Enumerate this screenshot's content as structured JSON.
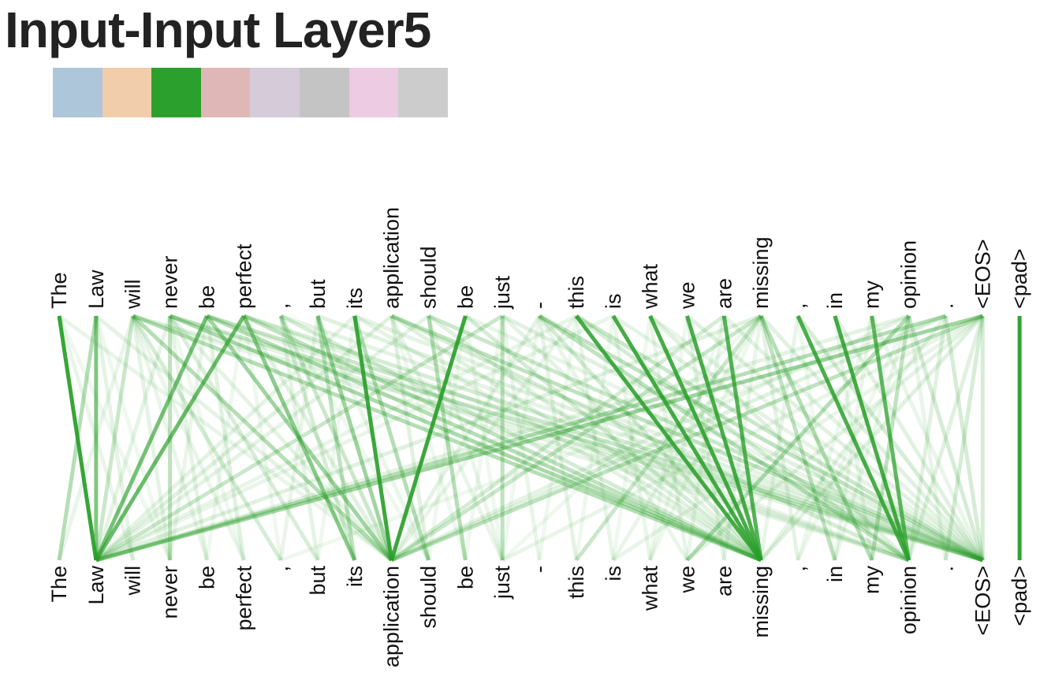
{
  "title": "Input-Input Layer5",
  "head_colors": [
    "#aec6d9",
    "#f2cdac",
    "#2ca02c",
    "#e0b7b7",
    "#d5cbd9",
    "#c4c4c4",
    "#edcbe2",
    "#cccccc"
  ],
  "active_head": 2,
  "link_color": "#2ca02c",
  "tokens": [
    "The",
    "Law",
    "will",
    "never",
    "be",
    "perfect",
    ",",
    "but",
    "its",
    "application",
    "should",
    "be",
    "just",
    "-",
    "this",
    "is",
    "what",
    "we",
    "are",
    "missing",
    ",",
    "in",
    "my",
    "opinion",
    ".",
    "<EOS>",
    "<pad>"
  ],
  "attention": [
    [
      0,
      1,
      0.95
    ],
    [
      1,
      1,
      0.6
    ],
    [
      2,
      1,
      0.25
    ],
    [
      3,
      3,
      0.3
    ],
    [
      4,
      1,
      0.65
    ],
    [
      5,
      1,
      0.7
    ],
    [
      8,
      9,
      0.92
    ],
    [
      11,
      9,
      0.92
    ],
    [
      14,
      19,
      0.88
    ],
    [
      15,
      19,
      0.88
    ],
    [
      16,
      19,
      0.88
    ],
    [
      17,
      19,
      0.85
    ],
    [
      18,
      19,
      0.8
    ],
    [
      20,
      23,
      0.85
    ],
    [
      21,
      23,
      0.88
    ],
    [
      22,
      23,
      0.75
    ],
    [
      26,
      26,
      0.98
    ],
    [
      5,
      8,
      0.55
    ],
    [
      4,
      9,
      0.45
    ],
    [
      7,
      9,
      0.45
    ],
    [
      8,
      10,
      0.35
    ],
    [
      10,
      11,
      0.35
    ],
    [
      12,
      12,
      0.3
    ],
    [
      2,
      9,
      0.35
    ],
    [
      3,
      19,
      0.4
    ],
    [
      2,
      19,
      0.35
    ],
    [
      4,
      19,
      0.35
    ],
    [
      5,
      19,
      0.3
    ],
    [
      1,
      0,
      0.35
    ],
    [
      25,
      1,
      0.45
    ],
    [
      24,
      1,
      0.35
    ],
    [
      25,
      9,
      0.3
    ],
    [
      23,
      17,
      0.35
    ],
    [
      23,
      22,
      0.3
    ],
    [
      19,
      14,
      0.25
    ],
    [
      19,
      22,
      0.35
    ],
    [
      19,
      21,
      0.3
    ],
    [
      25,
      25,
      0.2
    ],
    [
      25,
      24,
      0.2
    ],
    [
      24,
      25,
      0.2
    ],
    [
      4,
      25,
      0.25
    ],
    [
      5,
      25,
      0.2
    ],
    [
      3,
      25,
      0.25
    ],
    [
      9,
      25,
      0.3
    ],
    [
      10,
      25,
      0.25
    ],
    [
      13,
      25,
      0.3
    ],
    [
      14,
      25,
      0.25
    ],
    [
      13,
      23,
      0.3
    ],
    [
      12,
      1,
      0.25
    ],
    [
      9,
      23,
      0.2
    ],
    [
      6,
      9,
      0.25
    ],
    [
      6,
      8,
      0.2
    ],
    [
      7,
      8,
      0.3
    ],
    [
      6,
      19,
      0.2
    ],
    [
      2,
      6,
      0.2
    ],
    [
      3,
      7,
      0.18
    ],
    [
      4,
      5,
      0.15
    ],
    [
      11,
      19,
      0.2
    ],
    [
      10,
      19,
      0.15
    ],
    [
      13,
      19,
      0.2
    ],
    [
      14,
      23,
      0.2
    ],
    [
      18,
      9,
      0.2
    ],
    [
      19,
      9,
      0.25
    ],
    [
      20,
      25,
      0.2
    ],
    [
      21,
      25,
      0.15
    ],
    [
      16,
      23,
      0.15
    ],
    [
      17,
      25,
      0.15
    ],
    [
      12,
      25,
      0.15
    ],
    [
      2,
      3,
      0.12
    ],
    [
      3,
      4,
      0.12
    ],
    [
      2,
      4,
      0.1
    ],
    [
      6,
      7,
      0.12
    ],
    [
      7,
      6,
      0.1
    ],
    [
      9,
      10,
      0.15
    ],
    [
      12,
      13,
      0.1
    ],
    [
      13,
      14,
      0.12
    ],
    [
      15,
      16,
      0.1
    ],
    [
      16,
      17,
      0.1
    ],
    [
      17,
      18,
      0.12
    ],
    [
      18,
      17,
      0.1
    ],
    [
      19,
      20,
      0.12
    ],
    [
      22,
      21,
      0.1
    ],
    [
      24,
      23,
      0.15
    ],
    [
      23,
      24,
      0.1
    ],
    [
      0,
      2,
      0.1
    ],
    [
      1,
      2,
      0.12
    ],
    [
      2,
      0,
      0.1
    ],
    [
      3,
      1,
      0.12
    ],
    [
      9,
      1,
      0.15
    ],
    [
      10,
      1,
      0.12
    ],
    [
      8,
      1,
      0.12
    ],
    [
      14,
      1,
      0.1
    ],
    [
      15,
      1,
      0.1
    ],
    [
      19,
      1,
      0.15
    ],
    [
      23,
      1,
      0.12
    ],
    [
      3,
      23,
      0.12
    ],
    [
      4,
      23,
      0.12
    ],
    [
      2,
      23,
      0.1
    ],
    [
      5,
      23,
      0.1
    ],
    [
      8,
      19,
      0.12
    ],
    [
      9,
      19,
      0.15
    ],
    [
      12,
      19,
      0.12
    ],
    [
      0,
      9,
      0.1
    ],
    [
      1,
      9,
      0.12
    ],
    [
      3,
      9,
      0.12
    ],
    [
      5,
      9,
      0.15
    ],
    [
      13,
      9,
      0.12
    ],
    [
      14,
      9,
      0.1
    ],
    [
      23,
      9,
      0.12
    ],
    [
      24,
      9,
      0.15
    ],
    [
      2,
      25,
      0.12
    ],
    [
      6,
      25,
      0.12
    ],
    [
      7,
      25,
      0.15
    ],
    [
      8,
      25,
      0.12
    ],
    [
      11,
      25,
      0.1
    ],
    [
      15,
      25,
      0.12
    ],
    [
      16,
      25,
      0.1
    ],
    [
      18,
      25,
      0.12
    ],
    [
      19,
      25,
      0.15
    ],
    [
      22,
      25,
      0.1
    ],
    [
      23,
      25,
      0.2
    ],
    [
      25,
      19,
      0.15
    ],
    [
      25,
      23,
      0.15
    ],
    [
      25,
      17,
      0.12
    ],
    [
      24,
      19,
      0.12
    ],
    [
      25,
      12,
      0.1
    ],
    [
      25,
      15,
      0.1
    ],
    [
      24,
      6,
      0.08
    ],
    [
      13,
      17,
      0.1
    ],
    [
      14,
      15,
      0.1
    ],
    [
      15,
      14,
      0.08
    ],
    [
      17,
      16,
      0.08
    ],
    [
      20,
      19,
      0.1
    ],
    [
      21,
      22,
      0.1
    ],
    [
      22,
      20,
      0.08
    ],
    [
      10,
      12,
      0.1
    ],
    [
      11,
      12,
      0.08
    ],
    [
      12,
      11,
      0.08
    ],
    [
      8,
      7,
      0.08
    ],
    [
      7,
      10,
      0.1
    ],
    [
      6,
      10,
      0.08
    ],
    [
      0,
      3,
      0.08
    ],
    [
      1,
      3,
      0.08
    ],
    [
      4,
      3,
      0.1
    ],
    [
      5,
      4,
      0.08
    ],
    [
      5,
      6,
      0.08
    ],
    [
      3,
      5,
      0.08
    ],
    [
      2,
      5,
      0.1
    ],
    [
      19,
      12,
      0.08
    ],
    [
      19,
      18,
      0.1
    ],
    [
      19,
      15,
      0.1
    ],
    [
      19,
      16,
      0.08
    ],
    [
      23,
      21,
      0.1
    ],
    [
      23,
      20,
      0.08
    ],
    [
      9,
      12,
      0.1
    ],
    [
      9,
      11,
      0.08
    ],
    [
      11,
      10,
      0.08
    ],
    [
      13,
      12,
      0.08
    ],
    [
      14,
      13,
      0.08
    ],
    [
      16,
      15,
      0.08
    ],
    [
      18,
      16,
      0.08
    ],
    [
      20,
      21,
      0.08
    ]
  ]
}
